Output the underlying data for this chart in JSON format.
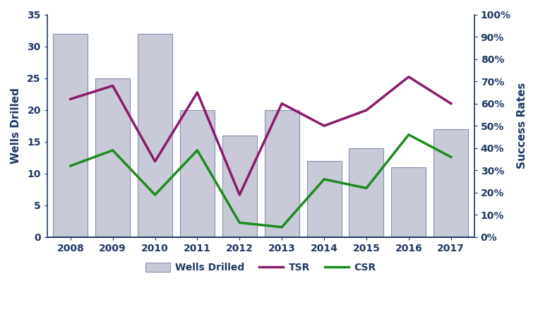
{
  "years": [
    2008,
    2009,
    2010,
    2011,
    2012,
    2013,
    2014,
    2015,
    2016,
    2017
  ],
  "wells_drilled": [
    32,
    25,
    32,
    20,
    16,
    20,
    12,
    14,
    11,
    17
  ],
  "tsr": [
    0.62,
    0.68,
    0.34,
    0.65,
    0.19,
    0.6,
    0.5,
    0.57,
    0.72,
    0.6
  ],
  "csr": [
    0.32,
    0.39,
    0.19,
    0.39,
    0.065,
    0.045,
    0.26,
    0.22,
    0.46,
    0.36
  ],
  "bar_color": "#C8CAD8",
  "bar_edge_color": "#8890B0",
  "tsr_color": "#8B1A6B",
  "csr_color": "#1E8B1E",
  "axis_color": "#1F3864",
  "ylabel_left": "Wells Drilled",
  "ylabel_right": "Success Rates",
  "ylim_left": [
    0,
    35
  ],
  "ylim_right": [
    0,
    1.0
  ],
  "yticks_left": [
    0,
    5,
    10,
    15,
    20,
    25,
    30,
    35
  ],
  "yticks_right": [
    0.0,
    0.1,
    0.2,
    0.3,
    0.4,
    0.5,
    0.6,
    0.7,
    0.8,
    0.9,
    1.0
  ],
  "legend_labels": [
    "Wells Drilled",
    "TSR",
    "CSR"
  ],
  "line_width": 2.5,
  "bar_width": 0.82
}
